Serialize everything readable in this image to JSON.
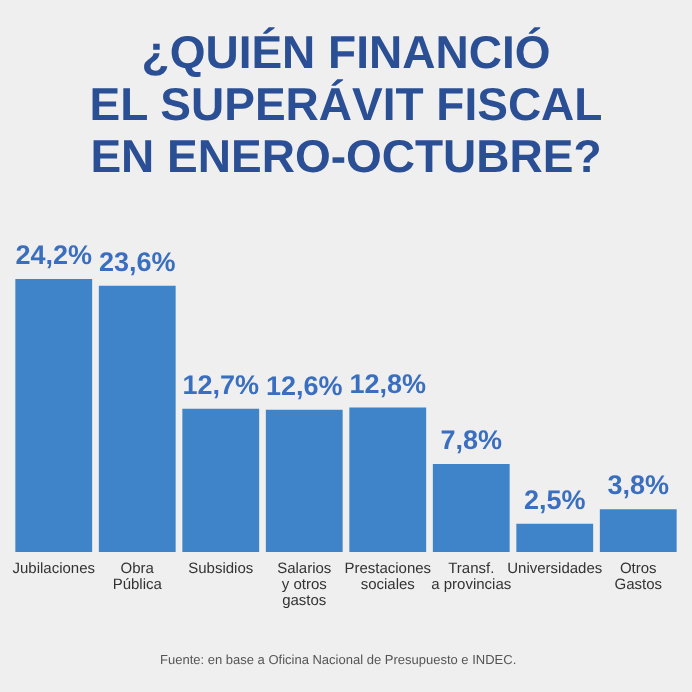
{
  "chart_data": {
    "type": "bar",
    "title": "¿QUIÉN FINANCIÓ\nEL SUPERÁVIT FISCAL\nEN ENERO-OCTUBRE?",
    "categories": [
      "Jubilaciones",
      "Obra\nPública",
      "Subsidios",
      "Salarios\ny otros\ngastos",
      "Prestaciones\nsociales",
      "Transf.\na provincias",
      "Universidades",
      "Otros\nGastos"
    ],
    "values": [
      24.2,
      23.6,
      12.7,
      12.6,
      12.8,
      7.8,
      2.5,
      3.8
    ],
    "value_labels": [
      "24,2%",
      "23,6%",
      "12,7%",
      "12,6%",
      "12,8%",
      "7,8%",
      "2,5%",
      "3,8%"
    ],
    "color": "#3f84c8",
    "annotations": [
      "Fuente: en base a Oficina Nacional de Presupuesto e INDEC."
    ]
  }
}
